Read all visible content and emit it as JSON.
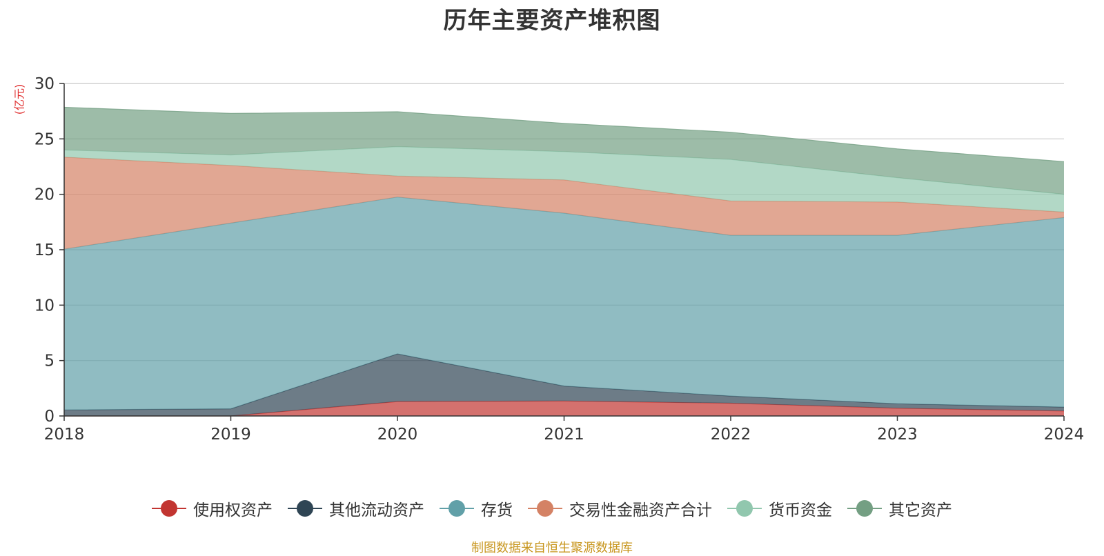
{
  "title": "历年主要资产堆积图",
  "unit_label": "(亿元)",
  "source_text": "制图数据来自恒生聚源数据库",
  "colors": {
    "unit": "#e03030",
    "source": "#c8961e",
    "axis": "#333333",
    "grid": "#c8c8c8"
  },
  "chart_data": {
    "type": "area",
    "stacked": true,
    "title": "历年主要资产堆积图",
    "ylabel": "(亿元)",
    "xlabel": "",
    "ylim": [
      0,
      30
    ],
    "yticks": [
      0,
      5,
      10,
      15,
      20,
      25,
      30
    ],
    "categories": [
      "2018",
      "2019",
      "2020",
      "2021",
      "2022",
      "2023",
      "2024"
    ],
    "series": [
      {
        "name": "使用权资产",
        "color": "#c23531",
        "values": [
          0.0,
          0.0,
          1.3,
          1.35,
          1.15,
          0.7,
          0.45
        ]
      },
      {
        "name": "其他流动资产",
        "color": "#2f4554",
        "values": [
          0.55,
          0.65,
          4.3,
          1.35,
          0.65,
          0.4,
          0.35
        ]
      },
      {
        "name": "存货",
        "color": "#61a0a8",
        "values": [
          14.5,
          16.75,
          14.15,
          15.6,
          14.5,
          15.2,
          17.1
        ]
      },
      {
        "name": "交易性金融资产合计",
        "color": "#d48265",
        "values": [
          8.3,
          5.2,
          1.9,
          3.0,
          3.1,
          3.0,
          0.5
        ]
      },
      {
        "name": "货币资金",
        "color": "#91c7ae",
        "values": [
          0.65,
          0.95,
          2.65,
          2.55,
          3.75,
          2.2,
          1.6
        ]
      },
      {
        "name": "其它资产",
        "color": "#749f83",
        "values": [
          3.85,
          3.75,
          3.15,
          2.55,
          2.45,
          2.6,
          2.95
        ]
      }
    ]
  }
}
